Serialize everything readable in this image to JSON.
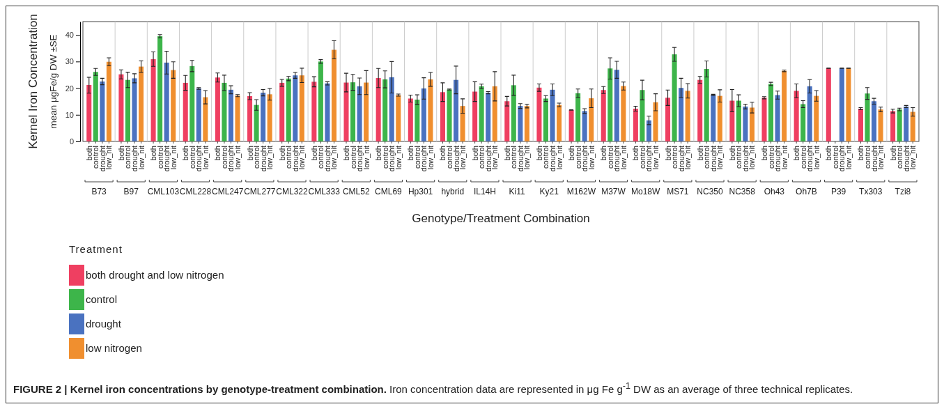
{
  "chart_data": {
    "type": "bar",
    "title": "FIGURE 2 | Kernel iron concentrations by genotype-treatment combination.",
    "xlabel": "Genotype/Treatment Combination",
    "ylabel": "Kernel Iron Concentration\nmean μgFe/g DW ±SE",
    "legend_title": "Treatment",
    "legend": "bottom left",
    "annotations": [
      "both",
      "control",
      "drought",
      "low_nit",
      "Iron concentration data are represented in μg Fe g$^{-1}$ DW as an average of three technical replicates."
    ],
    "categories": [
      "B73",
      "B97",
      "CML103",
      "CML228",
      "CML247",
      "CML277",
      "CML322",
      "CML333",
      "CML52",
      "CML69",
      "Hp301",
      "hybrid",
      "IL14H",
      "Ki11",
      "Ky21",
      "M162W",
      "M37W",
      "Mo18W",
      "MS71",
      "NC350",
      "NC358",
      "Oh43",
      "Oh7B",
      "P39",
      "Tx303",
      "Tzi8"
    ],
    "ylim": [
      0,
      45
    ],
    "yticks": [
      0,
      10,
      20,
      30,
      40
    ],
    "series": [
      {
        "name": "both drought and low nitrogen",
        "color": "#ef3f61",
        "values": [
          21.2,
          25.2,
          30.9,
          22.0,
          24.0,
          17.0,
          22.0,
          22.4,
          22.1,
          23.8,
          16.1,
          18.5,
          18.7,
          15.1,
          20.2,
          11.8,
          19.3,
          12.3,
          16.4,
          23.1,
          15.3,
          16.4,
          19.0,
          27.5,
          12.3,
          11.4
        ],
        "errors": [
          [
            18.1,
            24.1
          ],
          1.7,
          2.7,
          2.8,
          1.7,
          1.3,
          1.3,
          1.9,
          3.5,
          3.6,
          1.3,
          3.5,
          3.7,
          1.8,
          1.4,
          0.1,
          1.3,
          0.9,
          2.9,
          1.3,
          4.2,
          0.4,
          2.6,
          0.1,
          0.4,
          0.7
        ]
      },
      {
        "name": "control",
        "color": "#3db54a",
        "values": [
          26.1,
          23.1,
          39.5,
          28.3,
          22.0,
          13.7,
          23.6,
          30.0,
          22.2,
          23.3,
          15.7,
          19.5,
          20.7,
          21.1,
          16.1,
          18.1,
          27.4,
          19.3,
          32.7,
          27.2,
          15.3,
          21.6,
          14.0,
          null,
          18.0,
          12.0
        ],
        "errors": [
          1.3,
          2.9,
          0.6,
          2.1,
          2.9,
          2.0,
          0.8,
          0.7,
          3.0,
          3.2,
          1.8,
          0.2,
          0.8,
          3.8,
          1.1,
          1.6,
          4.0,
          3.7,
          2.6,
          3.0,
          2.2,
          0.6,
          1.3,
          null,
          2.2,
          0.5
        ]
      },
      {
        "name": "drought",
        "color": "#4a72c0",
        "values": [
          22.5,
          23.7,
          29.6,
          19.9,
          19.4,
          18.3,
          24.8,
          21.8,
          20.7,
          24.1,
          19.9,
          23.1,
          18.3,
          13.3,
          19.4,
          11.4,
          26.9,
          7.9,
          20.1,
          17.5,
          13.1,
          17.4,
          20.7,
          27.5,
          15.1,
          13.1
        ],
        "errors": [
          1.2,
          1.7,
          4.3,
          0.3,
          1.5,
          1.2,
          1.1,
          0.6,
          3.1,
          5.9,
          4.0,
          5.2,
          0.4,
          0.9,
          2.2,
          0.9,
          3.2,
          1.6,
          3.6,
          0.2,
          0.9,
          1.5,
          2.5,
          0.1,
          1.1,
          0.4
        ]
      },
      {
        "name": "low nitrogen",
        "color": "#f08f2f",
        "values": [
          29.9,
          28.1,
          26.8,
          16.6,
          17.2,
          17.7,
          24.8,
          34.4,
          22.1,
          17.4,
          23.3,
          13.3,
          20.7,
          13.3,
          13.7,
          16.2,
          20.8,
          14.7,
          19.0,
          17.1,
          12.7,
          26.5,
          17.1,
          27.5,
          12.0,
          11.1
        ],
        "errors": [
          1.5,
          2.2,
          3.1,
          2.5,
          0.4,
          2.2,
          2.7,
          3.4,
          4.5,
          0.4,
          2.6,
          2.7,
          5.5,
          0.7,
          0.7,
          3.5,
          1.5,
          3.2,
          2.7,
          2.3,
          2.0,
          0.3,
          2.0,
          0.1,
          0.9,
          1.6
        ]
      }
    ]
  }
}
